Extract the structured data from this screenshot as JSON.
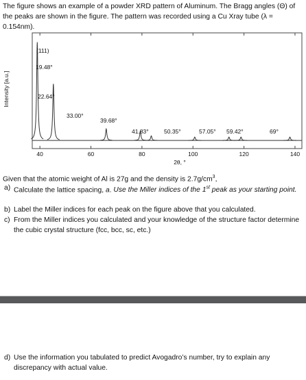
{
  "intro": "The figure shows an example of a powder XRD pattern of Aluminum. The Bragg angles (Θ) of the peaks are shown in the figure. The pattern was recorded using a Cu Xray tube (λ = 0.154nm).",
  "chart_data": {
    "type": "peaks",
    "y_label": "Intensity [a.u.]",
    "x_label": "2θ, °",
    "xlim": [
      37,
      142.7
    ],
    "xticks": [
      40,
      60,
      80,
      100,
      120,
      140
    ],
    "ylim": [
      0,
      100
    ],
    "baseline": 7,
    "miller_label": "(111)",
    "x": [
      38.96,
      45.28,
      66.0,
      79.36,
      83.66,
      100.7,
      114.1,
      118.84,
      138
    ],
    "values": [
      92,
      56,
      17,
      15,
      11,
      10,
      10,
      10,
      10
    ],
    "peak_labels": [
      "19.48°",
      "22.64°",
      "33.00°",
      "39.68°",
      "41.83°",
      "50.35°",
      "57.05°",
      "59.42°",
      "69°"
    ],
    "color": "#333333"
  },
  "given": {
    "text": "Given that the atomic weight of Al is 27g and the density is 2.7g/cm",
    "sup": "3",
    "end": ","
  },
  "items": [
    {
      "label": "a)",
      "text": "Calculate the lattice spacing, ",
      "var": "a",
      "text2": ". ",
      "note": "Use the Miller indices of the 1",
      "sup": "st",
      "note2": " peak as your starting point."
    },
    {
      "label": "b)",
      "text": "Label the Miller indices for each peak on the figure above that you calculated."
    },
    {
      "label": "c)",
      "text": "From the Miller indices you calculated and your knowledge of the structure factor determine the cubic crystal structure (fcc, bcc, sc, etc.)"
    },
    {
      "label": "d)",
      "text": "Use the information you tabulated to predict Avogadro’s number, try to explain any discrepancy with actual value."
    }
  ]
}
